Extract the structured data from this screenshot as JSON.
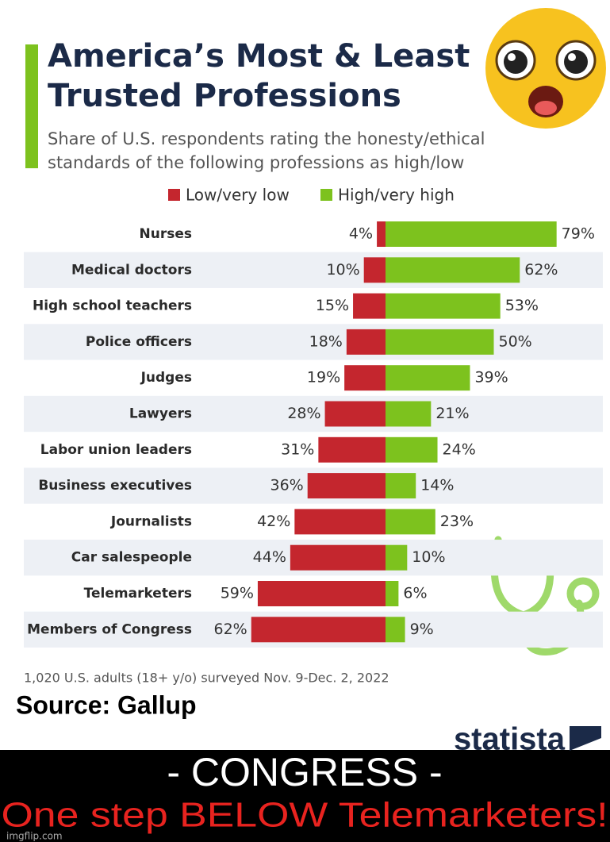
{
  "chart_data": {
    "type": "bar",
    "orientation": "diverging",
    "title": "America’s Most & Least Trusted Professions",
    "subtitle": "Share of U.S. respondents rating the honesty/ethical standards of the following professions as high/low",
    "categories": [
      "Nurses",
      "Medical doctors",
      "High school teachers",
      "Police officers",
      "Judges",
      "Lawyers",
      "Labor union leaders",
      "Business executives",
      "Journalists",
      "Car salespeople",
      "Telemarketers",
      "Members of Congress"
    ],
    "series": [
      {
        "name": "Low/very low",
        "color": "#c4262e",
        "values": [
          4,
          10,
          15,
          18,
          19,
          28,
          31,
          36,
          42,
          44,
          59,
          62
        ],
        "value_labels": [
          "4%",
          "10%",
          "15%",
          "18%",
          "19%",
          "28%",
          "31%",
          "36%",
          "42%",
          "44%",
          "59%",
          "62%"
        ]
      },
      {
        "name": "High/very high",
        "color": "#7dc21e",
        "values": [
          79,
          62,
          53,
          50,
          39,
          21,
          24,
          14,
          23,
          10,
          6,
          9
        ],
        "value_labels": [
          "79%",
          "62%",
          "53%",
          "50%",
          "39%",
          "21%",
          "24%",
          "14%",
          "23%",
          "10%",
          "6%",
          "9%"
        ]
      }
    ],
    "note": "1,020 U.S. adults (18+ y/o) surveyed Nov. 9-Dec. 2, 2022",
    "source": "Source: Gallup",
    "brand": "statista",
    "caption_top": "- CONGRESS -",
    "caption_bottom": "One step BELOW Telemarketers!",
    "watermark": "imgflip.com"
  }
}
